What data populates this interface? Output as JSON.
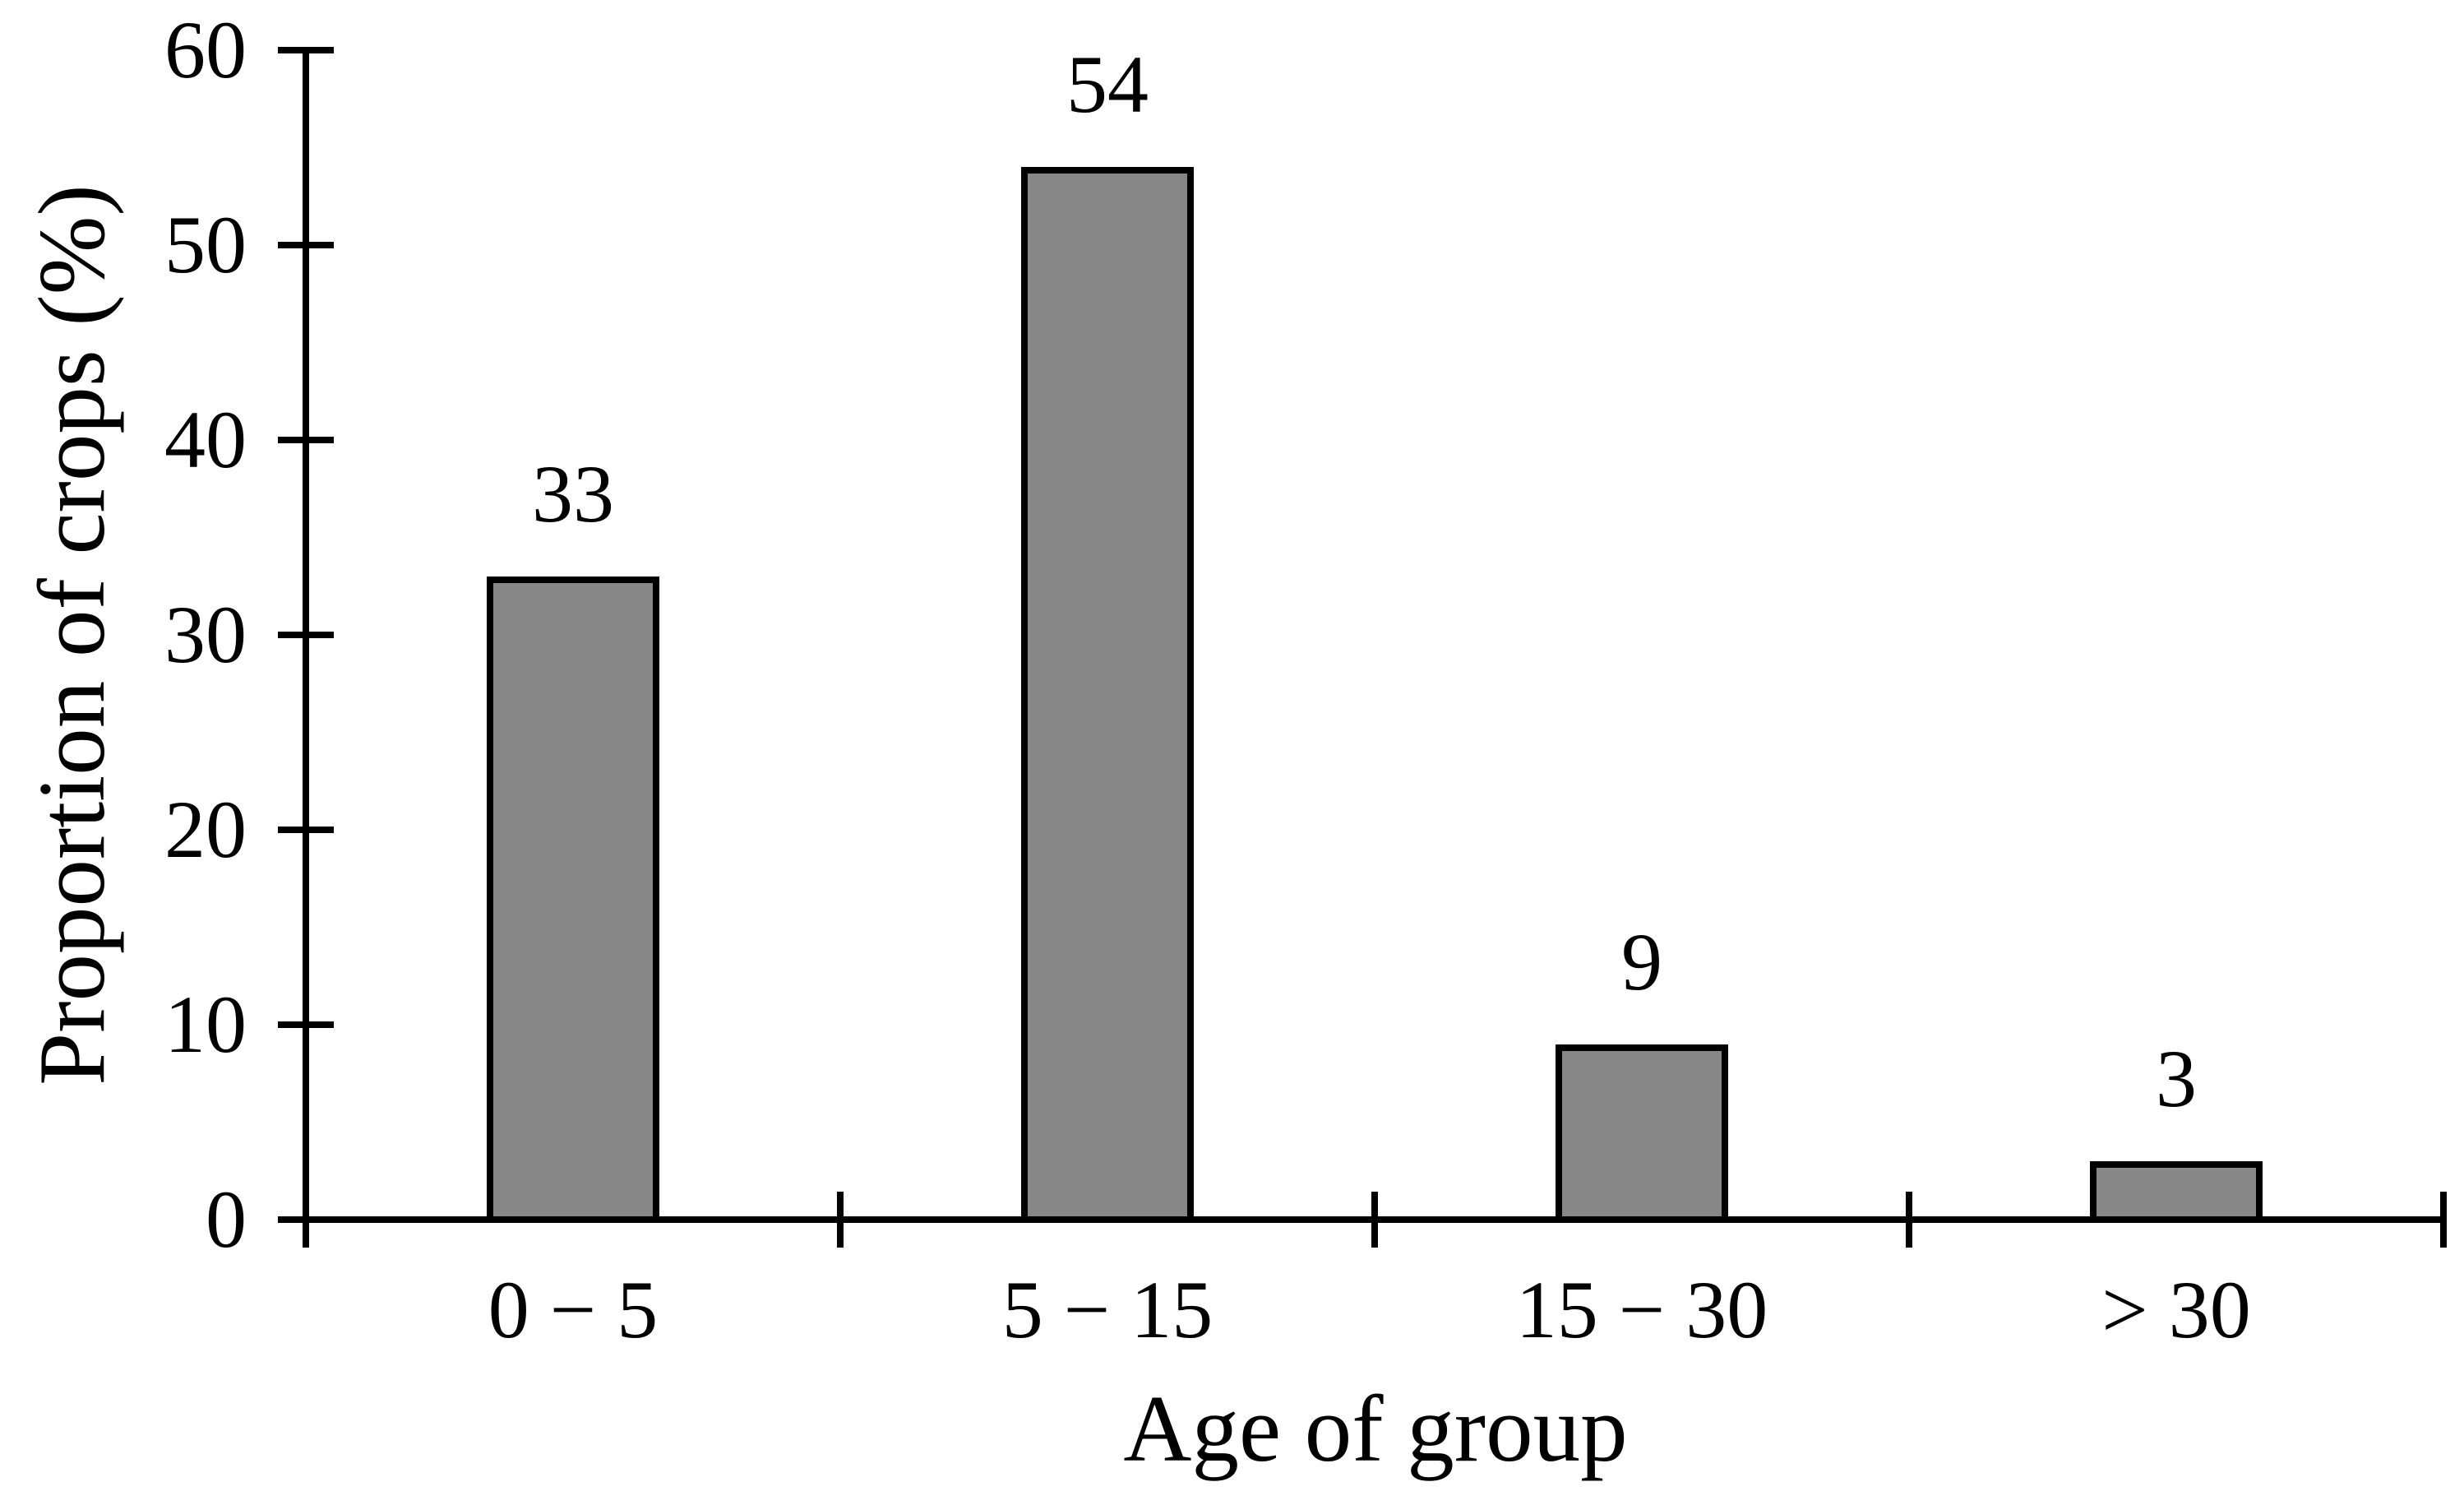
{
  "chart_data": {
    "type": "bar",
    "title": "",
    "categories": [
      "0 − 5",
      "5 − 15",
      "15 − 30",
      "> 30"
    ],
    "values": [
      33,
      54,
      9,
      3
    ],
    "data_labels": [
      "33",
      "54",
      "9",
      "3"
    ],
    "xlabel": "Age of group",
    "ylabel": "Proportion of crops (%)",
    "ylim": [
      0,
      60
    ],
    "yticks": [
      0,
      10,
      20,
      30,
      40,
      50,
      60
    ],
    "ytick_labels": [
      "0",
      "10",
      "20",
      "30",
      "40",
      "50",
      "60"
    ],
    "grid": false,
    "legend": "none",
    "tick_style": "cross",
    "colors": {
      "bar_fill": "#878787",
      "bar_border": "#000000",
      "axis": "#000000",
      "text": "#000000",
      "background": "#ffffff"
    }
  }
}
